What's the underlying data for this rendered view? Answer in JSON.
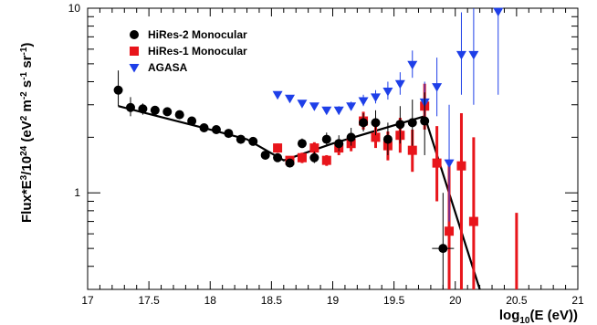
{
  "chart_data": {
    "type": "scatter",
    "xlabel": {
      "base": "log",
      "sub": "10",
      "rest": "(E (eV))"
    },
    "ylabel": {
      "t1": "Flux*E",
      "s1": "3",
      "t2": "/10",
      "s2": "24",
      "t3": " (eV",
      "s3": "2",
      "t4": " m",
      "s4": "-2",
      "t5": " s",
      "s5": "-1",
      "t6": " sr",
      "s6": "-1",
      "t7": ")"
    },
    "xlim": [
      17,
      21
    ],
    "ylim": [
      0.3,
      10
    ],
    "yscale": "log",
    "x_ticks": [
      {
        "v": 17,
        "label": "17"
      },
      {
        "v": 17.5,
        "label": "17.5"
      },
      {
        "v": 18,
        "label": "18"
      },
      {
        "v": 18.5,
        "label": "18.5"
      },
      {
        "v": 19,
        "label": "19"
      },
      {
        "v": 19.5,
        "label": "19.5"
      },
      {
        "v": 20,
        "label": "20"
      },
      {
        "v": 20.5,
        "label": "20.5"
      },
      {
        "v": 21,
        "label": "21"
      }
    ],
    "y_ticks": [
      {
        "v": 1,
        "label": "1"
      },
      {
        "v": 10,
        "label": "10"
      }
    ],
    "legend": {
      "position": "top-left"
    },
    "series": [
      {
        "name": "HiRes-2 Monocular",
        "marker": "circle",
        "color": "#000000",
        "points": [
          {
            "x": 17.25,
            "y": 3.6,
            "lo": 2.95,
            "hi": 4.6
          },
          {
            "x": 17.35,
            "y": 2.9,
            "lo": 2.6,
            "hi": 3.3
          },
          {
            "x": 17.45,
            "y": 2.85,
            "lo": 2.65,
            "hi": 3.05
          },
          {
            "x": 17.55,
            "y": 2.8,
            "lo": 2.7,
            "hi": 2.9
          },
          {
            "x": 17.65,
            "y": 2.75,
            "lo": 2.65,
            "hi": 2.85
          },
          {
            "x": 17.75,
            "y": 2.65,
            "lo": 2.58,
            "hi": 2.72
          },
          {
            "x": 17.85,
            "y": 2.45,
            "lo": 2.4,
            "hi": 2.5
          },
          {
            "x": 17.95,
            "y": 2.25,
            "lo": 2.2,
            "hi": 2.3
          },
          {
            "x": 18.05,
            "y": 2.2,
            "lo": 2.15,
            "hi": 2.25
          },
          {
            "x": 18.15,
            "y": 2.1,
            "lo": 2.06,
            "hi": 2.14
          },
          {
            "x": 18.25,
            "y": 1.95,
            "lo": 1.9,
            "hi": 2.0
          },
          {
            "x": 18.35,
            "y": 1.9,
            "lo": 1.85,
            "hi": 1.95
          },
          {
            "x": 18.45,
            "y": 1.6,
            "lo": 1.55,
            "hi": 1.65
          },
          {
            "x": 18.55,
            "y": 1.55,
            "lo": 1.5,
            "hi": 1.6
          },
          {
            "x": 18.65,
            "y": 1.45,
            "lo": 1.38,
            "hi": 1.52
          },
          {
            "x": 18.75,
            "y": 1.85,
            "lo": 1.75,
            "hi": 1.97
          },
          {
            "x": 18.85,
            "y": 1.55,
            "lo": 1.45,
            "hi": 1.67
          },
          {
            "x": 18.95,
            "y": 1.95,
            "lo": 1.8,
            "hi": 2.12
          },
          {
            "x": 19.05,
            "y": 1.85,
            "lo": 1.68,
            "hi": 2.05
          },
          {
            "x": 19.15,
            "y": 2.0,
            "lo": 1.8,
            "hi": 2.25
          },
          {
            "x": 19.25,
            "y": 2.4,
            "lo": 2.15,
            "hi": 2.7
          },
          {
            "x": 19.35,
            "y": 2.4,
            "lo": 2.05,
            "hi": 2.8
          },
          {
            "x": 19.45,
            "y": 1.95,
            "lo": 1.6,
            "hi": 2.4
          },
          {
            "x": 19.55,
            "y": 2.35,
            "lo": 1.85,
            "hi": 2.95
          },
          {
            "x": 19.65,
            "y": 2.4,
            "lo": 1.8,
            "hi": 3.2
          },
          {
            "x": 19.75,
            "y": 2.45,
            "lo": 1.6,
            "hi": 3.5
          },
          {
            "x": 19.9,
            "y": 0.5,
            "lo": 0.3,
            "hi": 1.0
          }
        ]
      },
      {
        "name": "HiRes-1 Monocular",
        "marker": "square",
        "color": "#e8151b",
        "points": [
          {
            "x": 18.55,
            "y": 1.75,
            "lo": 1.65,
            "hi": 1.85
          },
          {
            "x": 18.65,
            "y": 1.5,
            "lo": 1.42,
            "hi": 1.58
          },
          {
            "x": 18.75,
            "y": 1.55,
            "lo": 1.45,
            "hi": 1.65
          },
          {
            "x": 18.85,
            "y": 1.75,
            "lo": 1.62,
            "hi": 1.88
          },
          {
            "x": 18.95,
            "y": 1.5,
            "lo": 1.4,
            "hi": 1.6
          },
          {
            "x": 19.05,
            "y": 1.75,
            "lo": 1.6,
            "hi": 1.9
          },
          {
            "x": 19.15,
            "y": 1.85,
            "lo": 1.68,
            "hi": 2.05
          },
          {
            "x": 19.25,
            "y": 2.45,
            "lo": 2.2,
            "hi": 2.75
          },
          {
            "x": 19.35,
            "y": 2.0,
            "lo": 1.75,
            "hi": 2.3
          },
          {
            "x": 19.45,
            "y": 1.8,
            "lo": 1.5,
            "hi": 2.15
          },
          {
            "x": 19.55,
            "y": 2.05,
            "lo": 1.65,
            "hi": 2.55
          },
          {
            "x": 19.65,
            "y": 1.7,
            "lo": 1.3,
            "hi": 2.2
          },
          {
            "x": 19.75,
            "y": 2.95,
            "lo": 2.2,
            "hi": 3.9
          },
          {
            "x": 19.85,
            "y": 1.45,
            "lo": 0.9,
            "hi": 2.3
          },
          {
            "x": 19.95,
            "y": 0.62,
            "lo": 0.3,
            "hi": 1.5
          },
          {
            "x": 20.05,
            "y": 1.4,
            "lo": 0.3,
            "hi": 2.7
          },
          {
            "x": 20.15,
            "y": 0.7,
            "lo": 0.3,
            "hi": 2.0
          },
          {
            "x": 20.5,
            "y": 0.3,
            "lo": 0.3,
            "hi": 0.78
          }
        ]
      },
      {
        "name": "AGASA",
        "marker": "triangle-down",
        "color": "#1e3fe8",
        "points": [
          {
            "x": 18.55,
            "y": 3.4,
            "lo": 3.3,
            "hi": 3.5
          },
          {
            "x": 18.65,
            "y": 3.25,
            "lo": 3.15,
            "hi": 3.35
          },
          {
            "x": 18.75,
            "y": 3.05,
            "lo": 2.95,
            "hi": 3.15
          },
          {
            "x": 18.85,
            "y": 2.95,
            "lo": 2.85,
            "hi": 3.05
          },
          {
            "x": 18.95,
            "y": 2.8,
            "lo": 2.68,
            "hi": 2.92
          },
          {
            "x": 19.05,
            "y": 2.8,
            "lo": 2.66,
            "hi": 2.95
          },
          {
            "x": 19.15,
            "y": 2.95,
            "lo": 2.8,
            "hi": 3.12
          },
          {
            "x": 19.25,
            "y": 3.15,
            "lo": 2.95,
            "hi": 3.4
          },
          {
            "x": 19.35,
            "y": 3.3,
            "lo": 3.05,
            "hi": 3.6
          },
          {
            "x": 19.45,
            "y": 3.55,
            "lo": 3.2,
            "hi": 4.0
          },
          {
            "x": 19.55,
            "y": 3.9,
            "lo": 3.4,
            "hi": 4.5
          },
          {
            "x": 19.65,
            "y": 4.95,
            "lo": 4.2,
            "hi": 5.9
          },
          {
            "x": 19.75,
            "y": 3.1,
            "lo": 2.4,
            "hi": 4.0
          },
          {
            "x": 19.85,
            "y": 3.75,
            "lo": 2.6,
            "hi": 5.4
          },
          {
            "x": 19.95,
            "y": 1.45,
            "lo": 0.7,
            "hi": 3.0
          },
          {
            "x": 20.05,
            "y": 5.6,
            "lo": 3.4,
            "hi": 9.5
          },
          {
            "x": 20.15,
            "y": 5.6,
            "lo": 3.0,
            "hi": 10.0
          },
          {
            "x": 20.35,
            "y": 9.6,
            "lo": 3.4,
            "hi": 10.0
          }
        ]
      }
    ],
    "fit_line": {
      "color": "#000000",
      "points": [
        {
          "x": 17.25,
          "y": 2.95
        },
        {
          "x": 18.0,
          "y": 2.2
        },
        {
          "x": 18.3,
          "y": 1.95
        },
        {
          "x": 18.6,
          "y": 1.5
        },
        {
          "x": 19.0,
          "y": 1.85
        },
        {
          "x": 19.75,
          "y": 2.6
        },
        {
          "x": 20.2,
          "y": 0.3
        }
      ]
    }
  }
}
